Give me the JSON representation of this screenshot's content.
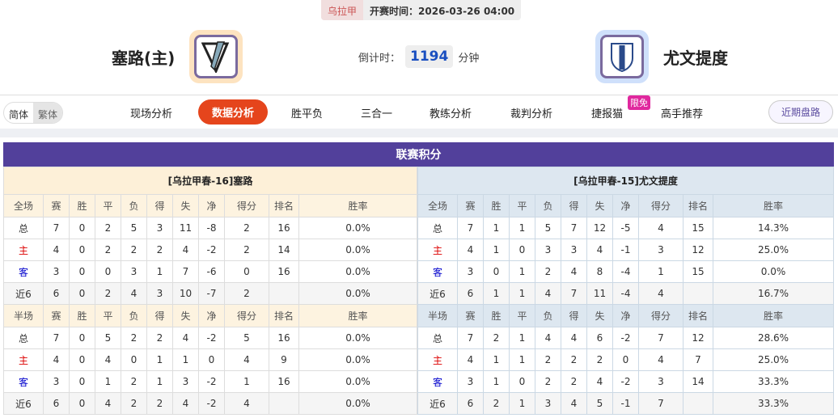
{
  "match": {
    "league": "乌拉甲",
    "kickoff": "开赛时间：2026-03-26 04:00",
    "home": "塞路(主)",
    "away": "尤文提度",
    "countdown_label": "倒计时：",
    "countdown": "1194",
    "countdown_unit": "分钟"
  },
  "nav": {
    "lang": [
      "简体",
      "繁体"
    ],
    "items": [
      "现场分析",
      "数据分析",
      "胜平负",
      "三合一",
      "教练分析",
      "裁判分析",
      "捷报猫",
      "高手推荐"
    ],
    "active": "数据分析",
    "free_badge": "限免",
    "recent": "近期盘路"
  },
  "colors": {
    "accent": "#e5451c",
    "title_bar": "#52409b"
  },
  "standings": {
    "title": "联赛积分",
    "headers_full": [
      "全场",
      "赛",
      "胜",
      "平",
      "负",
      "得",
      "失",
      "净",
      "得分",
      "排名",
      "胜率"
    ],
    "headers_half": [
      "半场",
      "赛",
      "胜",
      "平",
      "负",
      "得",
      "失",
      "净",
      "得分",
      "排名",
      "胜率"
    ],
    "home": {
      "caption": "[乌拉甲春-16]塞路",
      "full": [
        [
          "总",
          "7",
          "0",
          "2",
          "5",
          "3",
          "11",
          "-8",
          "2",
          "16",
          "0.0%"
        ],
        [
          "主",
          "4",
          "0",
          "2",
          "2",
          "2",
          "4",
          "-2",
          "2",
          "14",
          "0.0%"
        ],
        [
          "客",
          "3",
          "0",
          "0",
          "3",
          "1",
          "7",
          "-6",
          "0",
          "16",
          "0.0%"
        ],
        [
          "近6",
          "6",
          "0",
          "2",
          "4",
          "3",
          "10",
          "-7",
          "2",
          "",
          "0.0%"
        ]
      ],
      "half": [
        [
          "总",
          "7",
          "0",
          "5",
          "2",
          "2",
          "4",
          "-2",
          "5",
          "16",
          "0.0%"
        ],
        [
          "主",
          "4",
          "0",
          "4",
          "0",
          "1",
          "1",
          "0",
          "4",
          "9",
          "0.0%"
        ],
        [
          "客",
          "3",
          "0",
          "1",
          "2",
          "1",
          "3",
          "-2",
          "1",
          "16",
          "0.0%"
        ],
        [
          "近6",
          "6",
          "0",
          "4",
          "2",
          "2",
          "4",
          "-2",
          "4",
          "",
          "0.0%"
        ]
      ]
    },
    "away": {
      "caption": "[乌拉甲春-15]尤文提度",
      "full": [
        [
          "总",
          "7",
          "1",
          "1",
          "5",
          "7",
          "12",
          "-5",
          "4",
          "15",
          "14.3%"
        ],
        [
          "主",
          "4",
          "1",
          "0",
          "3",
          "3",
          "4",
          "-1",
          "3",
          "12",
          "25.0%"
        ],
        [
          "客",
          "3",
          "0",
          "1",
          "2",
          "4",
          "8",
          "-4",
          "1",
          "15",
          "0.0%"
        ],
        [
          "近6",
          "6",
          "1",
          "1",
          "4",
          "7",
          "11",
          "-4",
          "4",
          "",
          "16.7%"
        ]
      ],
      "half": [
        [
          "总",
          "7",
          "2",
          "1",
          "4",
          "4",
          "6",
          "-2",
          "7",
          "12",
          "28.6%"
        ],
        [
          "主",
          "4",
          "1",
          "1",
          "2",
          "2",
          "2",
          "0",
          "4",
          "7",
          "25.0%"
        ],
        [
          "客",
          "3",
          "1",
          "0",
          "2",
          "2",
          "4",
          "-2",
          "3",
          "14",
          "33.3%"
        ],
        [
          "近6",
          "6",
          "2",
          "1",
          "3",
          "4",
          "5",
          "-1",
          "7",
          "",
          "33.3%"
        ]
      ]
    }
  }
}
